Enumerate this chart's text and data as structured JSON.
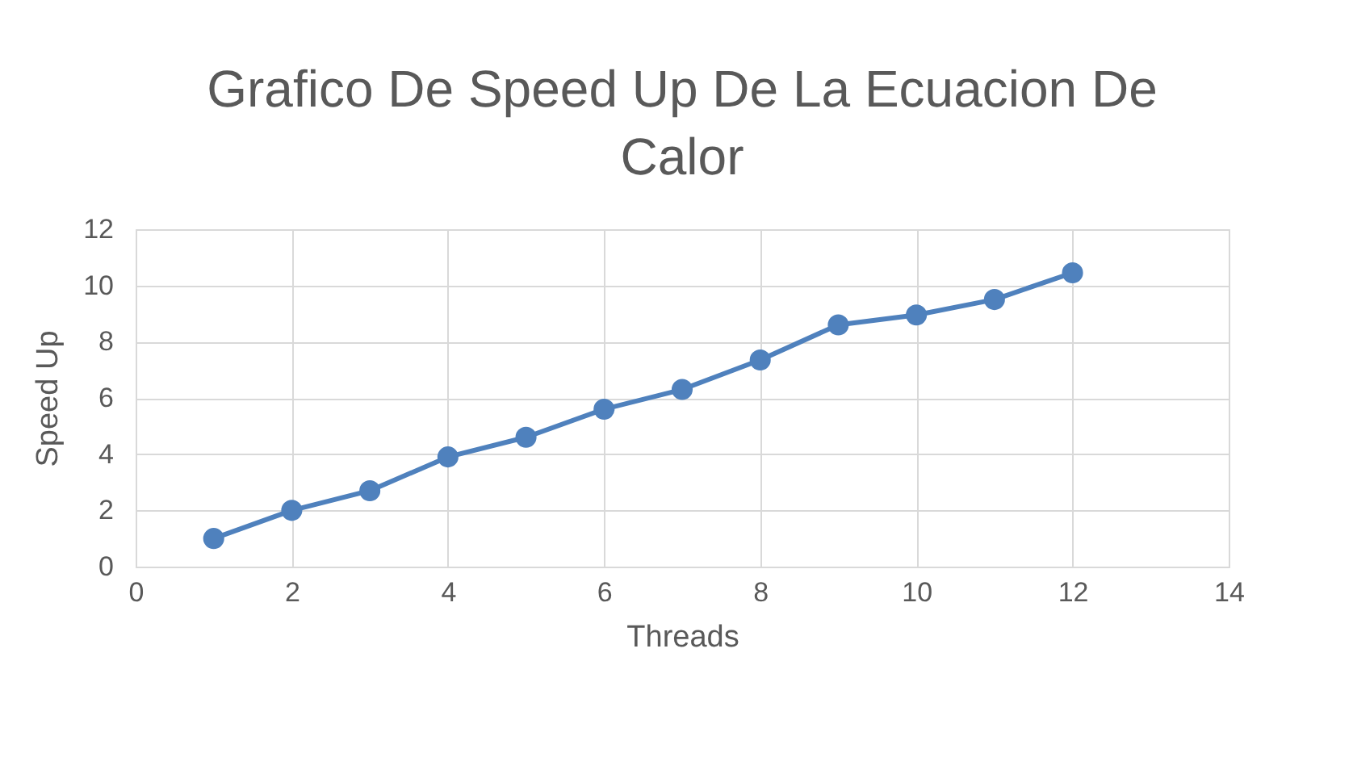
{
  "chart_data": {
    "type": "line",
    "title": "Grafico De Speed Up De La Ecuacion De Calor",
    "xlabel": "Threads",
    "ylabel": "Speed Up",
    "x": [
      1,
      2,
      3,
      4,
      5,
      6,
      7,
      8,
      9,
      10,
      11,
      12
    ],
    "series": [
      {
        "color": "#4f81bd",
        "values": [
          1.0,
          2.0,
          2.7,
          3.9,
          4.6,
          5.6,
          6.3,
          7.35,
          8.6,
          8.95,
          9.5,
          10.45
        ]
      }
    ],
    "xlim": [
      0,
      14
    ],
    "xticks": [
      0,
      2,
      4,
      6,
      8,
      10,
      12,
      14
    ],
    "ylim": [
      0,
      12
    ],
    "yticks": [
      0,
      2,
      4,
      6,
      8,
      10,
      12
    ],
    "grid": true,
    "marker": "circle",
    "line_style": "solid",
    "legend": false
  }
}
